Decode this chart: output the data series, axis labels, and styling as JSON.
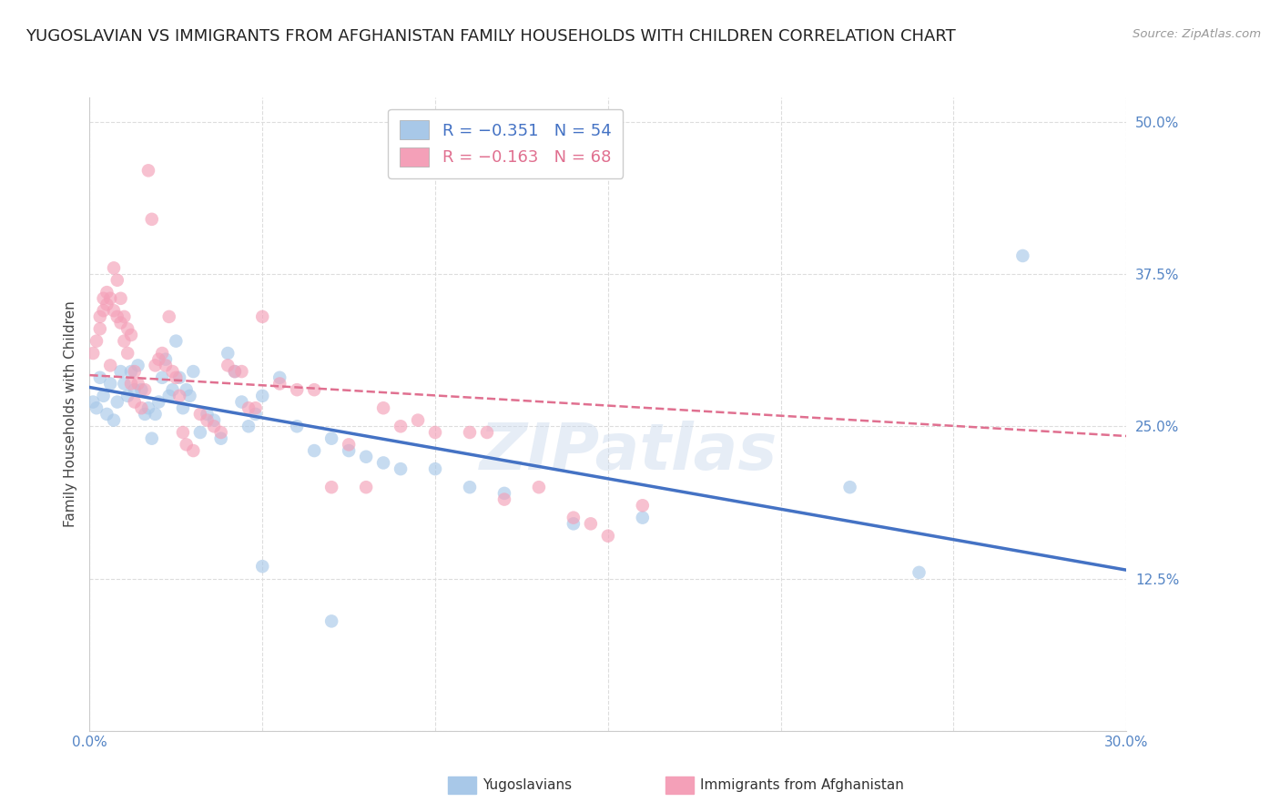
{
  "title": "YUGOSLAVIAN VS IMMIGRANTS FROM AFGHANISTAN FAMILY HOUSEHOLDS WITH CHILDREN CORRELATION CHART",
  "source": "Source: ZipAtlas.com",
  "ylabel": "Family Households with Children",
  "x_min": 0.0,
  "x_max": 0.3,
  "y_min": 0.0,
  "y_max": 0.52,
  "x_ticks": [
    0.0,
    0.05,
    0.1,
    0.15,
    0.2,
    0.25,
    0.3
  ],
  "x_tick_labels": [
    "0.0%",
    "",
    "",
    "",
    "",
    "",
    "30.0%"
  ],
  "y_ticks": [
    0.0,
    0.125,
    0.25,
    0.375,
    0.5
  ],
  "y_tick_labels": [
    "",
    "12.5%",
    "25.0%",
    "37.5%",
    "50.0%"
  ],
  "legend_entry1_color": "#a8c8e8",
  "legend_entry2_color": "#f4a0b8",
  "yugoslavians_color": "#a8c8e8",
  "afghanistan_color": "#f4a0b8",
  "line_blue_color": "#4472c4",
  "line_pink_color": "#e07090",
  "watermark": "ZIPatlas",
  "blue_line_x": [
    0.0,
    0.3
  ],
  "blue_line_y": [
    0.282,
    0.132
  ],
  "pink_line_x": [
    0.0,
    0.3
  ],
  "pink_line_y": [
    0.292,
    0.242
  ],
  "blue_dots": [
    [
      0.001,
      0.27
    ],
    [
      0.002,
      0.265
    ],
    [
      0.003,
      0.29
    ],
    [
      0.004,
      0.275
    ],
    [
      0.005,
      0.26
    ],
    [
      0.006,
      0.285
    ],
    [
      0.007,
      0.255
    ],
    [
      0.008,
      0.27
    ],
    [
      0.009,
      0.295
    ],
    [
      0.01,
      0.285
    ],
    [
      0.011,
      0.275
    ],
    [
      0.012,
      0.295
    ],
    [
      0.013,
      0.28
    ],
    [
      0.014,
      0.3
    ],
    [
      0.015,
      0.28
    ],
    [
      0.016,
      0.26
    ],
    [
      0.017,
      0.265
    ],
    [
      0.018,
      0.24
    ],
    [
      0.019,
      0.26
    ],
    [
      0.02,
      0.27
    ],
    [
      0.021,
      0.29
    ],
    [
      0.022,
      0.305
    ],
    [
      0.023,
      0.275
    ],
    [
      0.024,
      0.28
    ],
    [
      0.025,
      0.32
    ],
    [
      0.026,
      0.29
    ],
    [
      0.027,
      0.265
    ],
    [
      0.028,
      0.28
    ],
    [
      0.029,
      0.275
    ],
    [
      0.03,
      0.295
    ],
    [
      0.032,
      0.245
    ],
    [
      0.034,
      0.26
    ],
    [
      0.036,
      0.255
    ],
    [
      0.038,
      0.24
    ],
    [
      0.04,
      0.31
    ],
    [
      0.042,
      0.295
    ],
    [
      0.044,
      0.27
    ],
    [
      0.046,
      0.25
    ],
    [
      0.048,
      0.26
    ],
    [
      0.05,
      0.275
    ],
    [
      0.055,
      0.29
    ],
    [
      0.06,
      0.25
    ],
    [
      0.065,
      0.23
    ],
    [
      0.07,
      0.24
    ],
    [
      0.075,
      0.23
    ],
    [
      0.08,
      0.225
    ],
    [
      0.085,
      0.22
    ],
    [
      0.09,
      0.215
    ],
    [
      0.1,
      0.215
    ],
    [
      0.11,
      0.2
    ],
    [
      0.12,
      0.195
    ],
    [
      0.14,
      0.17
    ],
    [
      0.16,
      0.175
    ],
    [
      0.22,
      0.2
    ],
    [
      0.24,
      0.13
    ],
    [
      0.27,
      0.39
    ],
    [
      0.05,
      0.135
    ],
    [
      0.07,
      0.09
    ]
  ],
  "pink_dots": [
    [
      0.001,
      0.31
    ],
    [
      0.002,
      0.32
    ],
    [
      0.003,
      0.33
    ],
    [
      0.003,
      0.34
    ],
    [
      0.004,
      0.355
    ],
    [
      0.004,
      0.345
    ],
    [
      0.005,
      0.36
    ],
    [
      0.005,
      0.35
    ],
    [
      0.006,
      0.355
    ],
    [
      0.006,
      0.3
    ],
    [
      0.007,
      0.38
    ],
    [
      0.007,
      0.345
    ],
    [
      0.008,
      0.37
    ],
    [
      0.008,
      0.34
    ],
    [
      0.009,
      0.355
    ],
    [
      0.009,
      0.335
    ],
    [
      0.01,
      0.34
    ],
    [
      0.01,
      0.32
    ],
    [
      0.011,
      0.33
    ],
    [
      0.011,
      0.31
    ],
    [
      0.012,
      0.325
    ],
    [
      0.012,
      0.285
    ],
    [
      0.013,
      0.295
    ],
    [
      0.013,
      0.27
    ],
    [
      0.014,
      0.285
    ],
    [
      0.015,
      0.265
    ],
    [
      0.016,
      0.28
    ],
    [
      0.017,
      0.46
    ],
    [
      0.018,
      0.42
    ],
    [
      0.019,
      0.3
    ],
    [
      0.02,
      0.305
    ],
    [
      0.021,
      0.31
    ],
    [
      0.022,
      0.3
    ],
    [
      0.023,
      0.34
    ],
    [
      0.024,
      0.295
    ],
    [
      0.025,
      0.29
    ],
    [
      0.026,
      0.275
    ],
    [
      0.027,
      0.245
    ],
    [
      0.028,
      0.235
    ],
    [
      0.03,
      0.23
    ],
    [
      0.032,
      0.26
    ],
    [
      0.034,
      0.255
    ],
    [
      0.036,
      0.25
    ],
    [
      0.038,
      0.245
    ],
    [
      0.04,
      0.3
    ],
    [
      0.042,
      0.295
    ],
    [
      0.044,
      0.295
    ],
    [
      0.046,
      0.265
    ],
    [
      0.048,
      0.265
    ],
    [
      0.05,
      0.34
    ],
    [
      0.055,
      0.285
    ],
    [
      0.06,
      0.28
    ],
    [
      0.065,
      0.28
    ],
    [
      0.07,
      0.2
    ],
    [
      0.075,
      0.235
    ],
    [
      0.08,
      0.2
    ],
    [
      0.085,
      0.265
    ],
    [
      0.09,
      0.25
    ],
    [
      0.095,
      0.255
    ],
    [
      0.1,
      0.245
    ],
    [
      0.11,
      0.245
    ],
    [
      0.115,
      0.245
    ],
    [
      0.12,
      0.19
    ],
    [
      0.13,
      0.2
    ],
    [
      0.14,
      0.175
    ],
    [
      0.145,
      0.17
    ],
    [
      0.15,
      0.16
    ],
    [
      0.16,
      0.185
    ]
  ],
  "background_color": "#ffffff",
  "grid_color": "#dddddd",
  "tick_color": "#5585c5",
  "title_fontsize": 13,
  "axis_label_fontsize": 11,
  "tick_fontsize": 11,
  "watermark_fontsize": 52,
  "watermark_color": "#c8d8ec",
  "watermark_alpha": 0.45,
  "dot_size": 110,
  "dot_alpha": 0.65
}
